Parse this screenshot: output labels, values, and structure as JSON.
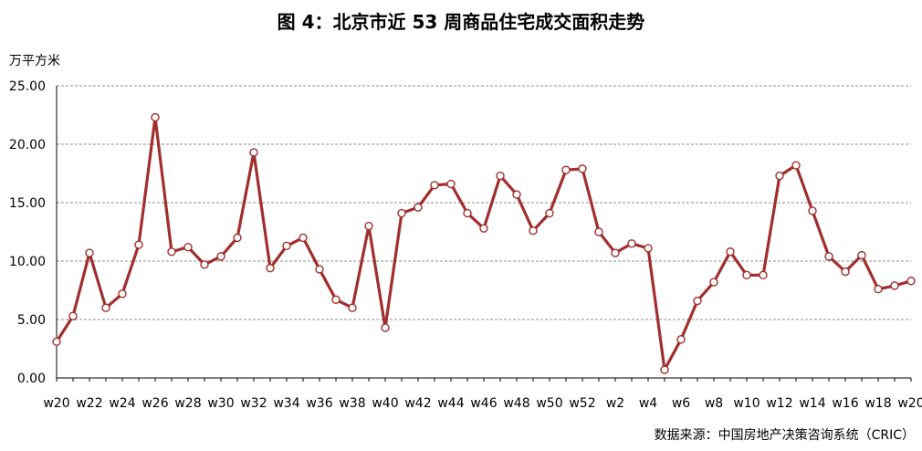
{
  "chart_data": {
    "type": "line",
    "title": "图 4：北京市近 53 周商品住宅成交面积走势",
    "ylabel": "万平方米",
    "xlabel": "",
    "source": "数据来源：中国房地产决策咨询系统（CRIC）",
    "ylim": [
      0,
      25
    ],
    "yticks": [
      "0.00",
      "5.00",
      "10.00",
      "15.00",
      "20.00",
      "25.00"
    ],
    "grid": true,
    "line_color": "#A12E2E",
    "categories": [
      "w20",
      "w21",
      "w22",
      "w23",
      "w24",
      "w25",
      "w26",
      "w27",
      "w28",
      "w29",
      "w30",
      "w31",
      "w32",
      "w33",
      "w34",
      "w35",
      "w36",
      "w37",
      "w38",
      "w39",
      "w40",
      "w41",
      "w42",
      "w43",
      "w44",
      "w45",
      "w46",
      "w47",
      "w48",
      "w49",
      "w50",
      "w51",
      "w52",
      "w1",
      "w2",
      "w3",
      "w4",
      "w5",
      "w6",
      "w7",
      "w8",
      "w9",
      "w10",
      "w11",
      "w12",
      "w13",
      "w14",
      "w15",
      "w16",
      "w17",
      "w18",
      "w19",
      "w20"
    ],
    "xtick_labels": [
      "w20",
      "",
      "w22",
      "",
      "w24",
      "",
      "w26",
      "",
      "w28",
      "",
      "w30",
      "",
      "w32",
      "",
      "w34",
      "",
      "w36",
      "",
      "w38",
      "",
      "w40",
      "",
      "w42",
      "",
      "w44",
      "",
      "w46",
      "",
      "w48",
      "",
      "w50",
      "",
      "w52",
      "",
      "w2",
      "",
      "w4",
      "",
      "w6",
      "",
      "w8",
      "",
      "w10",
      "",
      "w12",
      "",
      "w14",
      "",
      "w16",
      "",
      "w18",
      "",
      "w20"
    ],
    "values": [
      3.1,
      5.3,
      10.7,
      6.0,
      7.2,
      11.4,
      22.3,
      10.8,
      11.2,
      9.7,
      10.4,
      12.0,
      19.3,
      9.4,
      11.3,
      12.0,
      9.3,
      6.7,
      6.0,
      13.0,
      4.3,
      14.1,
      14.6,
      16.5,
      16.6,
      14.1,
      12.8,
      17.3,
      15.7,
      12.6,
      14.1,
      17.8,
      17.9,
      12.5,
      10.7,
      11.5,
      11.1,
      0.7,
      3.3,
      6.6,
      8.2,
      10.8,
      8.8,
      8.8,
      17.3,
      18.2,
      14.3,
      10.4,
      9.1,
      10.5,
      7.6,
      7.9,
      8.3
    ]
  }
}
